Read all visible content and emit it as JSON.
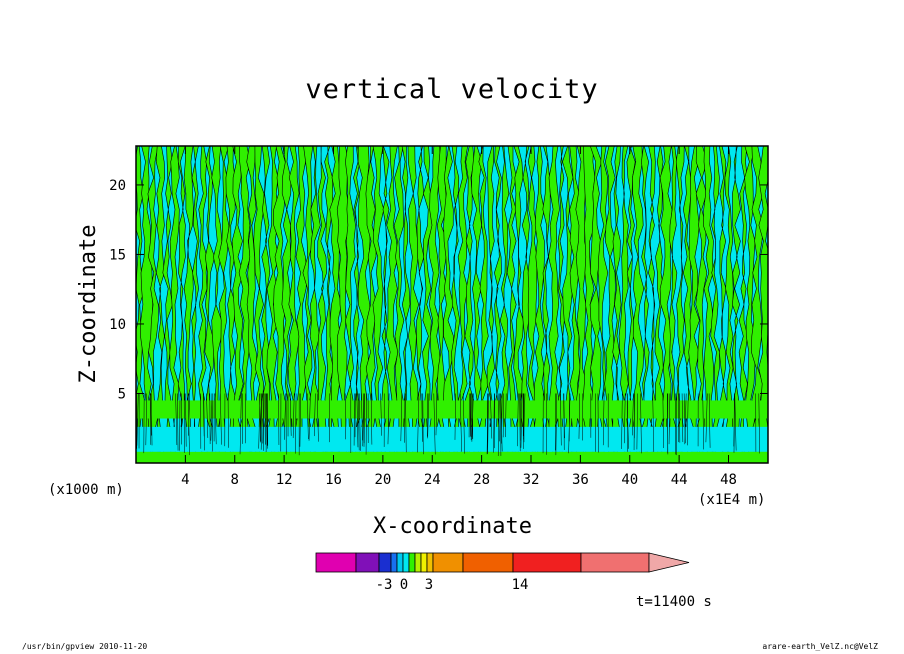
{
  "title": "vertical velocity",
  "footer": {
    "left": "/usr/bin/gpview   2010-11-20",
    "right": "arare-earth_VelZ.nc@VelZ"
  },
  "time_label": "t=11400 s",
  "chart_data": {
    "type": "heatmap",
    "title": "vertical velocity",
    "xlabel": "X-coordinate",
    "ylabel": "Z-coordinate",
    "x_unit": "(x1000 m)",
    "x_scale": "(x1E4 m)",
    "xlim": [
      0,
      51.2
    ],
    "ylim": [
      0,
      22.8
    ],
    "x_ticks": [
      4,
      8,
      12,
      16,
      20,
      24,
      28,
      32,
      36,
      40,
      44,
      48
    ],
    "y_ticks": [
      5,
      10,
      15,
      20
    ],
    "colorbar": {
      "colors": [
        "#e000b0",
        "#8010b8",
        "#1a2fd0",
        "#1870f0",
        "#00c8f0",
        "#00e8f0",
        "#30f000",
        "#b8f000",
        "#f0f000",
        "#f0c000",
        "#f09000",
        "#f06000",
        "#f02020",
        "#f07070",
        "#f0a8a8"
      ],
      "tick_labels": [
        "-3",
        "0",
        "3",
        "14"
      ]
    },
    "fill_colors": {
      "negative": "#00e8f0",
      "positive": "#30f000"
    },
    "contour_color": "#000000"
  }
}
